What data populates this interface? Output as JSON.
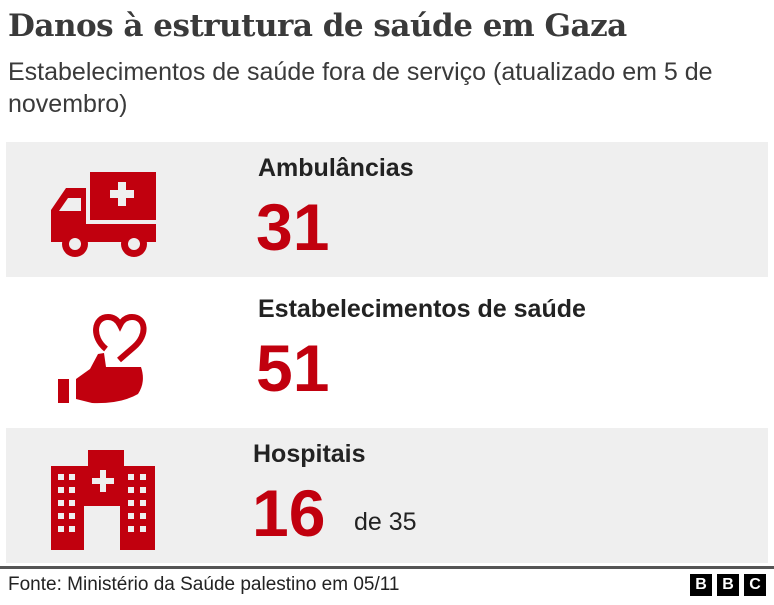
{
  "header": {
    "title": "Danos à estrutura de saúde em Gaza",
    "subtitle": "Estabelecimentos de saúde fora de serviço (atualizado em 5 de novembro)"
  },
  "colors": {
    "accent": "#c1000e",
    "panel": "#efefef"
  },
  "stats": [
    {
      "label": "Ambulâncias",
      "value": "31",
      "icon": "ambulance-icon"
    },
    {
      "label": "Estabelecimentos de saúde",
      "value": "51",
      "icon": "hand-heart-icon"
    },
    {
      "label": "Hospitais",
      "value": "16",
      "suffix": "de 35",
      "icon": "hospital-icon"
    }
  ],
  "footer": {
    "source": "Fonte: Ministério da Saúde palestino em 05/11",
    "logo": [
      "B",
      "B",
      "C"
    ]
  }
}
